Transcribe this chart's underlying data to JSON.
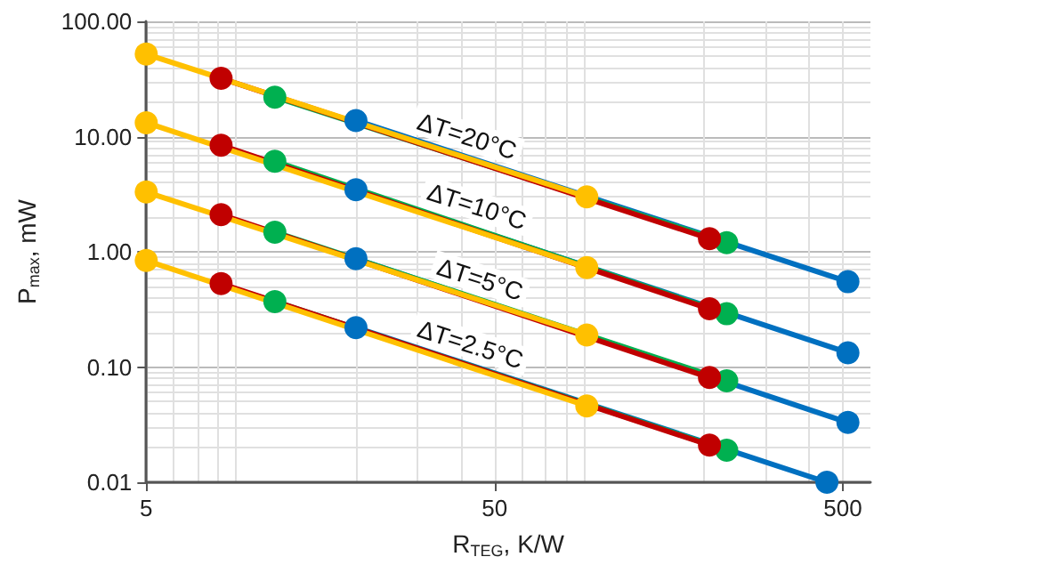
{
  "chart_data": {
    "type": "line",
    "xlabel": "R$_{TEG}$, K/W",
    "ylabel": "P$_{max}$, mW",
    "log": "xy",
    "grid": true,
    "marker": "circle",
    "line_style": "solid",
    "xlim": [
      5,
      600
    ],
    "xticks": [
      5,
      50,
      500
    ],
    "ylim": [
      0.01,
      100
    ],
    "yticks": [
      {
        "value": 0.01,
        "label": "0.01"
      },
      {
        "value": 0.1,
        "label": "0.10"
      },
      {
        "value": 1,
        "label": "1.00"
      },
      {
        "value": 10,
        "label": "10.00"
      },
      {
        "value": 100,
        "label": "100.00"
      }
    ],
    "annotations": [
      {
        "text": "ΔT=20°C",
        "x": 44,
        "y": 6.1
      },
      {
        "text": "ΔT=10°C",
        "x": 47,
        "y": 1.5
      },
      {
        "text": "ΔT=5°C",
        "x": 48,
        "y": 0.35
      },
      {
        "text": "ΔT=2.5°C",
        "x": 45,
        "y": 0.095
      }
    ],
    "series": [
      {
        "color": "#0070c0",
        "x": [
          20,
          517
        ],
        "values": [
          13.8,
          0.55
        ]
      },
      {
        "color": "#0070c0",
        "x": [
          20,
          517
        ],
        "values": [
          3.45,
          0.133
        ]
      },
      {
        "color": "#0070c0",
        "x": [
          20,
          517
        ],
        "values": [
          0.87,
          0.033
        ]
      },
      {
        "color": "#0070c0",
        "x": [
          20,
          450
        ],
        "values": [
          0.22,
          0.01
        ]
      },
      {
        "color": "#00b050",
        "x": [
          11.7,
          232
        ],
        "values": [
          22,
          1.2
        ]
      },
      {
        "color": "#00b050",
        "x": [
          11.7,
          232
        ],
        "values": [
          6.1,
          0.29
        ]
      },
      {
        "color": "#00b050",
        "x": [
          11.7,
          232
        ],
        "values": [
          1.48,
          0.076
        ]
      },
      {
        "color": "#00b050",
        "x": [
          11.7,
          232
        ],
        "values": [
          0.37,
          0.019
        ]
      },
      {
        "color": "#c00000",
        "x": [
          8.2,
          207
        ],
        "values": [
          32,
          1.3
        ]
      },
      {
        "color": "#c00000",
        "x": [
          8.2,
          207
        ],
        "values": [
          8.4,
          0.32
        ]
      },
      {
        "color": "#c00000",
        "x": [
          8.2,
          207
        ],
        "values": [
          2.1,
          0.081
        ]
      },
      {
        "color": "#c00000",
        "x": [
          8.2,
          207
        ],
        "values": [
          0.53,
          0.021
        ]
      },
      {
        "color": "#ffc000",
        "x": [
          5,
          92
        ],
        "values": [
          52,
          3.0
        ]
      },
      {
        "color": "#ffc000",
        "x": [
          5,
          92
        ],
        "values": [
          13.2,
          0.73
        ]
      },
      {
        "color": "#ffc000",
        "x": [
          5,
          92
        ],
        "values": [
          3.3,
          0.19
        ]
      },
      {
        "color": "#ffc000",
        "x": [
          5,
          92
        ],
        "values": [
          0.84,
          0.046
        ]
      }
    ]
  }
}
